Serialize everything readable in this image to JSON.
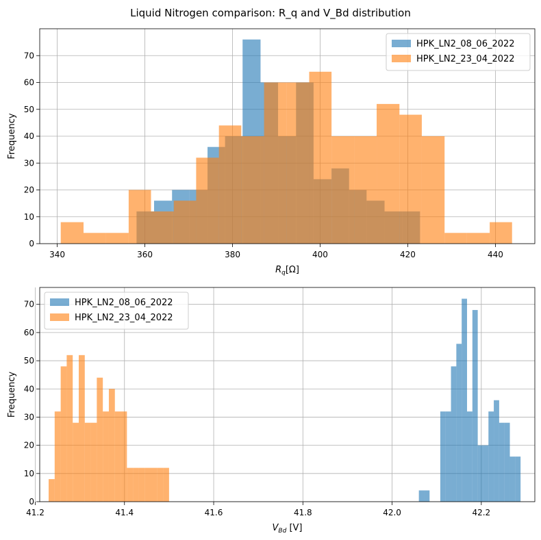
{
  "title": "Liquid Nitrogen comparison: R_q and V_Bd distribution",
  "chart_data": [
    {
      "type": "bar",
      "subtype": "histogram",
      "xlabel_main": "R",
      "xlabel_sub": "q",
      "xlabel_rest": "[Ω]",
      "ylabel": "Frequency",
      "xlim": [
        336,
        449
      ],
      "ylim": [
        0,
        80
      ],
      "xticks": [
        340,
        360,
        380,
        400,
        420,
        440
      ],
      "yticks": [
        0,
        10,
        20,
        30,
        40,
        50,
        60,
        70
      ],
      "grid": true,
      "legend_position": "upper right",
      "series": [
        {
          "name": "HPK_LN2_08_06_2022",
          "color": "#1f77b4",
          "alpha": 0.6,
          "edges": [
            358.1,
            362.1,
            366.2,
            370.2,
            374.3,
            378.3,
            382.3,
            386.4,
            390.4,
            394.5,
            398.5,
            402.6,
            406.6,
            410.6,
            414.7,
            418.7,
            422.8
          ],
          "counts": [
            12,
            16,
            20,
            20,
            36,
            40,
            76,
            60,
            40,
            60,
            24,
            28,
            20,
            16,
            12,
            12
          ]
        },
        {
          "name": "HPK_LN2_23_04_2022",
          "color": "#ff7f0e",
          "alpha": 0.6,
          "edges": [
            340.8,
            346.0,
            351.1,
            356.3,
            361.4,
            366.6,
            371.7,
            376.9,
            382.0,
            387.2,
            392.3,
            397.5,
            402.6,
            407.8,
            412.9,
            418.1,
            423.2,
            428.4,
            433.5,
            438.7,
            443.8
          ],
          "counts": [
            8,
            4,
            4,
            20,
            12,
            16,
            32,
            44,
            40,
            60,
            60,
            64,
            40,
            40,
            52,
            48,
            40,
            4,
            4,
            8
          ]
        }
      ]
    },
    {
      "type": "bar",
      "subtype": "histogram",
      "xlabel_main": "V",
      "xlabel_sub": "Bd",
      "xlabel_rest": " [V]",
      "ylabel": "Frequency",
      "xlim": [
        41.21,
        42.32
      ],
      "ylim": [
        0,
        76
      ],
      "xticks": [
        41.2,
        41.4,
        41.6,
        41.8,
        42.0,
        42.2
      ],
      "xtick_labels": [
        "41.2",
        "41.4",
        "41.6",
        "41.8",
        "42.0",
        "42.2"
      ],
      "yticks": [
        0,
        10,
        20,
        30,
        40,
        50,
        60,
        70
      ],
      "grid": true,
      "legend_position": "upper left",
      "series": [
        {
          "name": "HPK_LN2_08_06_2022",
          "color": "#1f77b4",
          "alpha": 0.6,
          "edges": [
            42.06,
            42.072,
            42.084,
            42.096,
            42.108,
            42.12,
            42.132,
            42.144,
            42.156,
            42.168,
            42.18,
            42.192,
            42.204,
            42.216,
            42.228,
            42.24,
            42.252,
            42.264,
            42.276,
            42.288,
            42.3
          ],
          "counts": [
            4,
            4,
            0,
            0,
            32,
            32,
            48,
            56,
            72,
            32,
            68,
            20,
            20,
            32,
            36,
            28,
            28,
            16,
            16,
            0
          ]
        },
        {
          "name": "HPK_LN2_23_04_2022",
          "color": "#ff7f0e",
          "alpha": 0.6,
          "edges": [
            41.23,
            41.2435,
            41.257,
            41.2705,
            41.284,
            41.2975,
            41.311,
            41.3245,
            41.338,
            41.3515,
            41.365,
            41.3785,
            41.392,
            41.4055,
            41.419,
            41.4325,
            41.446,
            41.4595,
            41.473,
            41.4865,
            41.5
          ],
          "counts": [
            8,
            32,
            48,
            52,
            28,
            52,
            28,
            28,
            44,
            32,
            40,
            32,
            32,
            12,
            12,
            12,
            12,
            12,
            12,
            12
          ]
        }
      ]
    }
  ]
}
